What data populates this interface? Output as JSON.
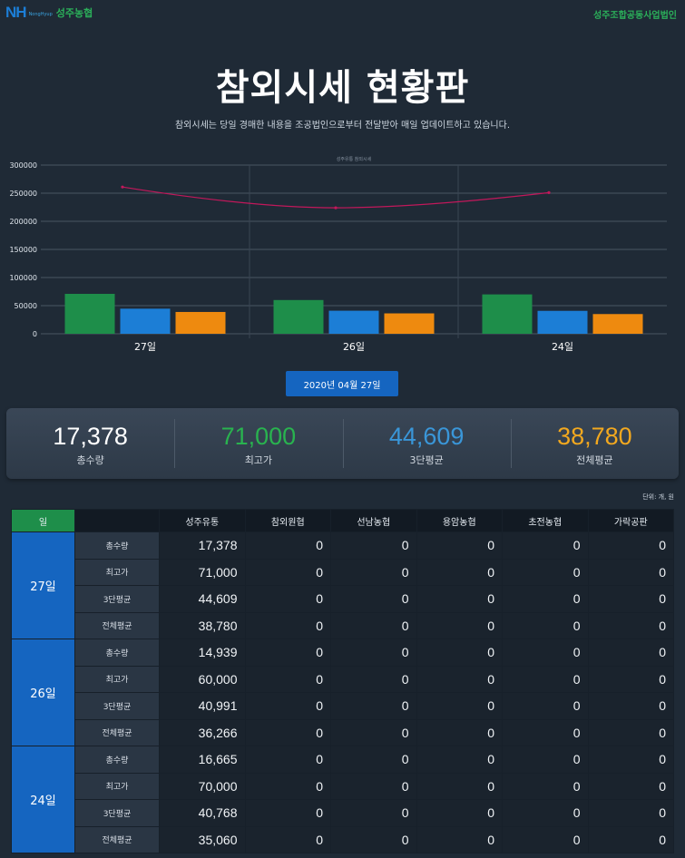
{
  "header": {
    "logo_text": "NH",
    "logo_sub": "NongHyup",
    "brand": "성주농협",
    "corp": "성주조합공동사업법인"
  },
  "title": "참외시세 현황판",
  "subtitle": "참외시세는 당일 경매한 내용을 조공법인으로부터 전달받아 매일 업데이트하고 있습니다.",
  "colors": {
    "green": "#1e8e4a",
    "blue": "#1c7ed6",
    "orange": "#ee8a0f",
    "line": "#c2185b"
  },
  "chart_data": {
    "type": "bar",
    "title": "성주유통 참외시세",
    "categories": [
      "27일",
      "26일",
      "24일"
    ],
    "ylim": [
      0,
      300000
    ],
    "yticks": [
      "0",
      "50000",
      "100000",
      "150000",
      "200000",
      "250000",
      "300000"
    ],
    "series": [
      {
        "values": [
          71000,
          60000,
          70000
        ]
      },
      {
        "values": [
          44609,
          40991,
          40768
        ]
      },
      {
        "values": [
          38780,
          36266,
          35060
        ]
      }
    ],
    "line": {
      "values": [
        261000,
        224000,
        251000
      ]
    }
  },
  "date_button": "2020년 04월 27일",
  "summary": [
    {
      "value": "17,378",
      "label": "총수량",
      "color": "#ffffff"
    },
    {
      "value": "71,000",
      "label": "최고가",
      "color": "#29b34f"
    },
    {
      "value": "44,609",
      "label": "3단평균",
      "color": "#3a96d8"
    },
    {
      "value": "38,780",
      "label": "전체평균",
      "color": "#f2a81f"
    }
  ],
  "unit_note": "단위: 개, 원",
  "table": {
    "day_header": "일",
    "columns": [
      "성주유통",
      "참외원협",
      "선남농협",
      "용암농협",
      "초전농협",
      "가락공판"
    ],
    "groups": [
      {
        "day": "27일",
        "rows": [
          {
            "label": "총수량",
            "values": [
              "17,378",
              "0",
              "0",
              "0",
              "0",
              "0"
            ]
          },
          {
            "label": "최고가",
            "values": [
              "71,000",
              "0",
              "0",
              "0",
              "0",
              "0"
            ]
          },
          {
            "label": "3단평균",
            "values": [
              "44,609",
              "0",
              "0",
              "0",
              "0",
              "0"
            ]
          },
          {
            "label": "전체평균",
            "values": [
              "38,780",
              "0",
              "0",
              "0",
              "0",
              "0"
            ]
          }
        ]
      },
      {
        "day": "26일",
        "rows": [
          {
            "label": "총수량",
            "values": [
              "14,939",
              "0",
              "0",
              "0",
              "0",
              "0"
            ]
          },
          {
            "label": "최고가",
            "values": [
              "60,000",
              "0",
              "0",
              "0",
              "0",
              "0"
            ]
          },
          {
            "label": "3단평균",
            "values": [
              "40,991",
              "0",
              "0",
              "0",
              "0",
              "0"
            ]
          },
          {
            "label": "전체평균",
            "values": [
              "36,266",
              "0",
              "0",
              "0",
              "0",
              "0"
            ]
          }
        ]
      },
      {
        "day": "24일",
        "rows": [
          {
            "label": "총수량",
            "values": [
              "16,665",
              "0",
              "0",
              "0",
              "0",
              "0"
            ]
          },
          {
            "label": "최고가",
            "values": [
              "70,000",
              "0",
              "0",
              "0",
              "0",
              "0"
            ]
          },
          {
            "label": "3단평균",
            "values": [
              "40,768",
              "0",
              "0",
              "0",
              "0",
              "0"
            ]
          },
          {
            "label": "전체평균",
            "values": [
              "35,060",
              "0",
              "0",
              "0",
              "0",
              "0"
            ]
          }
        ]
      }
    ]
  }
}
